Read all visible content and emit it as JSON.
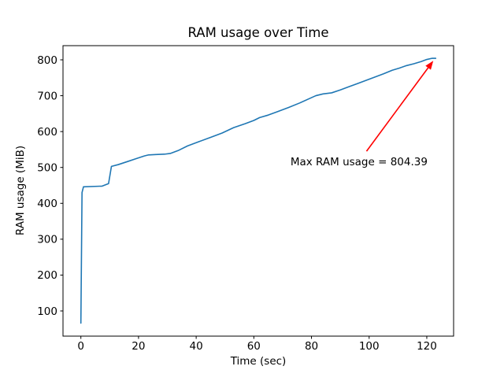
{
  "chart_data": {
    "type": "line",
    "title": "RAM usage over Time",
    "xlabel": "Time (sec)",
    "ylabel": "RAM usage (MiB)",
    "xlim": [
      -6.2,
      129.3
    ],
    "ylim": [
      29.8,
      839.5
    ],
    "xticks": [
      0,
      20,
      40,
      60,
      80,
      100,
      120
    ],
    "yticks": [
      100,
      200,
      300,
      400,
      500,
      600,
      700,
      800
    ],
    "grid": false,
    "legend": null,
    "background_color": "#ffffff",
    "spine_color": "#000000",
    "series": [
      {
        "name": "RAM usage",
        "color": "#1f77b4",
        "x": [
          0,
          0.4,
          0.9,
          7.4,
          9.6,
          10.6,
          13,
          16,
          19,
          22,
          23.5,
          26,
          29,
          31,
          34,
          37,
          41,
          45,
          49,
          53,
          57,
          60,
          62,
          65,
          68,
          72,
          76,
          79,
          81.5,
          84,
          87,
          90,
          93,
          96,
          99,
          102,
          105,
          108,
          110.5,
          113,
          115.5,
          118,
          120,
          121.9,
          123.1
        ],
        "y": [
          66,
          430,
          446,
          448,
          455,
          503,
          508,
          516,
          524,
          532,
          535,
          536,
          537,
          539,
          548,
          560,
          572,
          584,
          596,
          611,
          622,
          631,
          639,
          646,
          655,
          667,
          680,
          691,
          700,
          705,
          708,
          716,
          725,
          734,
          743,
          752,
          761,
          771,
          777,
          784,
          789,
          795,
          801,
          804.39,
          804.2
        ]
      }
    ],
    "annotation": {
      "text": "Max RAM usage = 804.39",
      "color": "#ff0000",
      "xy": [
        122.9,
        804.39
      ],
      "xytext": [
        96.5,
        517
      ]
    }
  }
}
